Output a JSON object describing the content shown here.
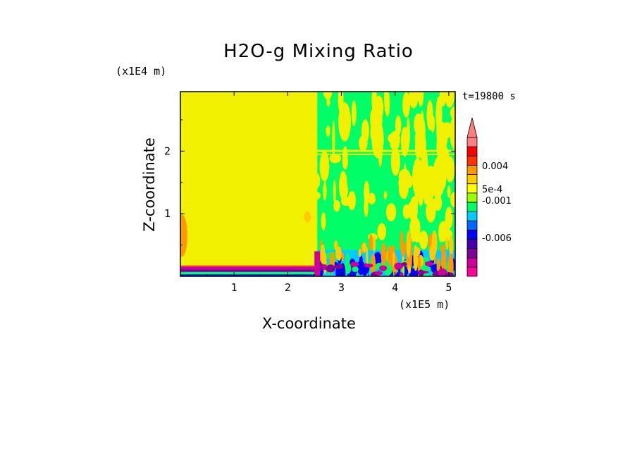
{
  "chart_data": {
    "type": "heatmap",
    "title": "H2O-g Mixing Ratio",
    "xlabel": "X-coordinate",
    "ylabel": "Z-coordinate",
    "x_multiplier": "(x1E5 m)",
    "y_multiplier": "(x1E4 m)",
    "time_label": "t=19800 s",
    "xlim": [
      0,
      5.12
    ],
    "ylim": [
      0,
      2.95
    ],
    "x_ticks": [
      "1",
      "2",
      "3",
      "4",
      "5"
    ],
    "y_ticks": [
      "1",
      "2"
    ],
    "colorbar": {
      "labels": [
        "0.004",
        "5e-4",
        "-0.001",
        "-0.006"
      ],
      "colors": [
        "#ff0099",
        "#cc0099",
        "#7f0099",
        "#4400aa",
        "#0000ff",
        "#0066ff",
        "#00ccff",
        "#00ff66",
        "#99ff00",
        "#ffff00",
        "#ffcc00",
        "#ff9900",
        "#ff3300",
        "#ff0000",
        "#ff7f7f"
      ]
    },
    "regions": [
      {
        "name": "left domain",
        "color": "#f0f000",
        "x_range": [
          0,
          2.55
        ],
        "z_range": [
          0.2,
          2.95
        ]
      },
      {
        "name": "surface layer",
        "color": "#cc0099",
        "x_range": [
          0,
          2.55
        ],
        "z_range": [
          0,
          0.2
        ]
      },
      {
        "name": "right domain turbulence",
        "color": "#00ff66",
        "x_range": [
          2.55,
          5.12
        ],
        "z_range": [
          0,
          2.95
        ]
      }
    ]
  }
}
